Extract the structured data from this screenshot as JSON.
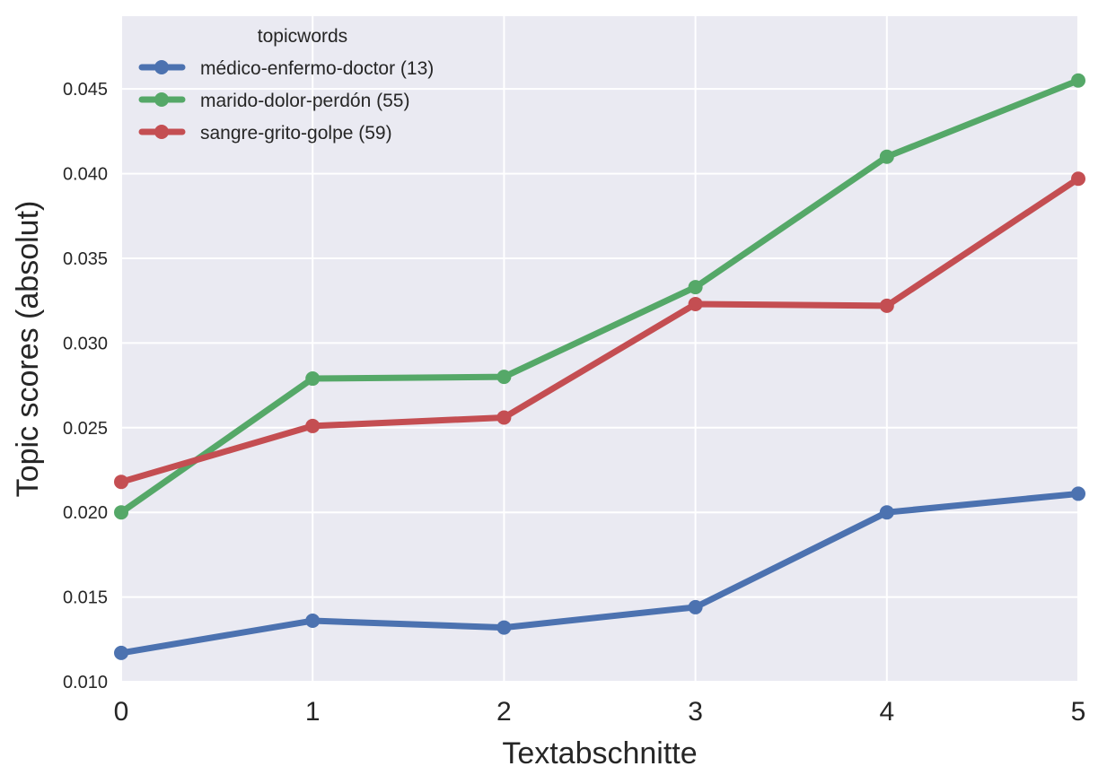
{
  "chart_data": {
    "type": "line",
    "title": "",
    "xlabel": "Textabschnitte",
    "ylabel": "Topic scores (absolut)",
    "x": [
      0,
      1,
      2,
      3,
      4,
      5
    ],
    "x_tick_labels": [
      "0",
      "1",
      "2",
      "3",
      "4",
      "5"
    ],
    "xlim": [
      0,
      5
    ],
    "ylim": [
      0.01,
      0.0493
    ],
    "y_ticks": [
      0.01,
      0.015,
      0.02,
      0.025,
      0.03,
      0.035,
      0.04,
      0.045
    ],
    "y_tick_labels": [
      "0.010",
      "0.015",
      "0.020",
      "0.025",
      "0.030",
      "0.035",
      "0.040",
      "0.045"
    ],
    "grid": true,
    "background": "#EAEAF2",
    "legend": {
      "title": "topicwords",
      "placement": "upper-left"
    },
    "series": [
      {
        "name": "médico-enfermo-doctor (13)",
        "color": "#4C72B0",
        "values": [
          0.0117,
          0.0136,
          0.0132,
          0.0144,
          0.02,
          0.0211
        ]
      },
      {
        "name": "marido-dolor-perdón (55)",
        "color": "#55A868",
        "values": [
          0.02,
          0.0279,
          0.028,
          0.0333,
          0.041,
          0.0455
        ]
      },
      {
        "name": "sangre-grito-golpe (59)",
        "color": "#C44E52",
        "values": [
          0.0218,
          0.0251,
          0.0256,
          0.0323,
          0.0322,
          0.0397
        ]
      }
    ]
  }
}
